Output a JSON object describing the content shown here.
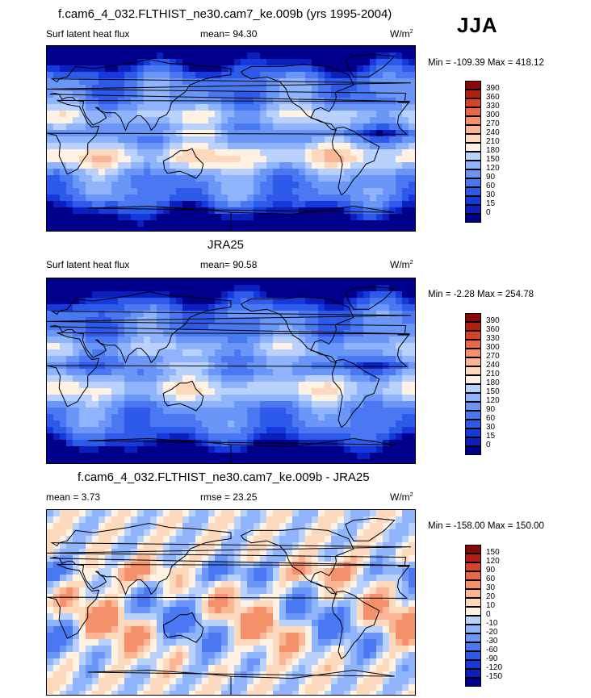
{
  "season": "JJA",
  "colors": {
    "abs": [
      "#00008b",
      "#0a1fbe",
      "#1539dc",
      "#2e5aea",
      "#4a78f2",
      "#6a96f7",
      "#8fb4fb",
      "#b9d2fd",
      "#e0ecff",
      "#fff2e2",
      "#fcd8bd",
      "#f9b594",
      "#f4906a",
      "#ea6746",
      "#d8422b",
      "#b41d13",
      "#870806"
    ],
    "diff": [
      "#00008b",
      "#0a1fbe",
      "#1539dc",
      "#2e5aea",
      "#4a78f2",
      "#6a96f7",
      "#8fb4fb",
      "#b9d2fd",
      "#e0ecff",
      "#fff2e2",
      "#fcd8bd",
      "#f9b594",
      "#f4906a",
      "#ea6746",
      "#d8422b",
      "#b41d13",
      "#870806"
    ]
  },
  "panels": [
    {
      "title": "f.cam6_4_032.FLTHIST_ne30.cam7_ke.009b (yrs 1995-2004)",
      "left": "Surf latent heat flux",
      "stat": "mean=  94.30",
      "units": "W/m",
      "units_sup": "2",
      "minmax": "Min = -109.39 Max = 418.12",
      "ticks": [
        "390",
        "360",
        "330",
        "300",
        "270",
        "240",
        "210",
        "180",
        "150",
        "120",
        "90",
        "60",
        "30",
        "15",
        "0"
      ],
      "scale": "abs",
      "level": 0.45
    },
    {
      "title": "JRA25",
      "left": "Surf latent heat flux",
      "stat": "mean=  90.58",
      "units": "W/m",
      "units_sup": "2",
      "minmax": "Min =  -2.28 Max = 254.78",
      "ticks": [
        "390",
        "360",
        "330",
        "300",
        "270",
        "240",
        "210",
        "180",
        "150",
        "120",
        "90",
        "60",
        "30",
        "15",
        "0"
      ],
      "scale": "abs",
      "level": 0.42
    },
    {
      "title": "f.cam6_4_032.FLTHIST_ne30.cam7_ke.009b - JRA25",
      "left": "mean =   3.73",
      "stat": "rmse =  23.25",
      "units": "W/m",
      "units_sup": "2",
      "minmax": "Min = -158.00 Max = 150.00",
      "ticks": [
        "150",
        "120",
        "90",
        "60",
        "30",
        "20",
        "10",
        "0",
        "-10",
        "-20",
        "-30",
        "-60",
        "-90",
        "-120",
        "-150"
      ],
      "scale": "diff",
      "level": 0.0
    }
  ]
}
